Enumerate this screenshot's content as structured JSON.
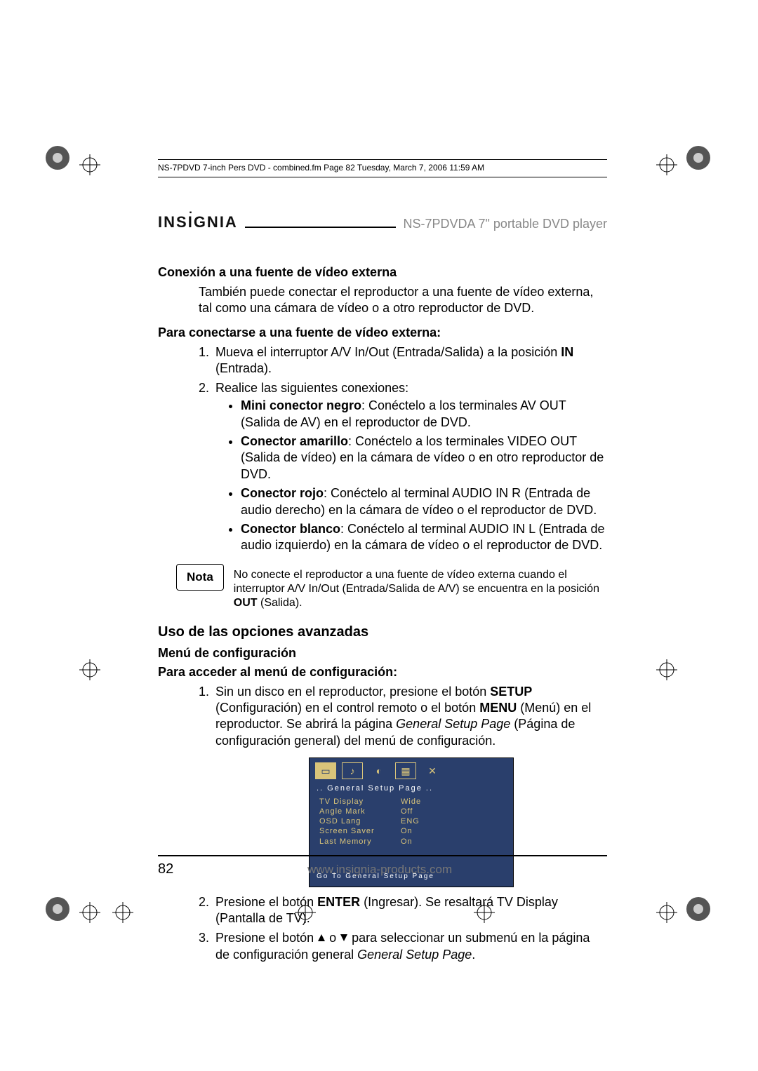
{
  "docinfo": "NS-7PDVD 7-inch Pers DVD - combined.fm  Page 82  Tuesday, March 7, 2006  11:59 AM",
  "brand": "INSIGNIA",
  "product": "NS-7PDVDA 7\" portable DVD player",
  "section1": {
    "title": "Conexión a una fuente de vídeo externa",
    "para": "También puede conectar el reproductor a una fuente de vídeo externa, tal como una cámara de vídeo o a otro reproductor de DVD.",
    "sub": "Para conectarse a una fuente de vídeo externa:",
    "step1_a": "Mueva el interruptor A/V In/Out (Entrada/Salida) a la posición ",
    "step1_b": "IN",
    "step1_c": " (Entrada).",
    "step2": "Realice las siguientes conexiones:",
    "b1_a": "Mini conector negro",
    "b1_b": ": Conéctelo a los terminales AV OUT (Salida de AV) en el reproductor de DVD.",
    "b2_a": "Conector amarillo",
    "b2_b": ": Conéctelo a los terminales VIDEO OUT (Salida de vídeo) en la cámara de vídeo o en otro reproductor de DVD.",
    "b3_a": "Conector rojo",
    "b3_b": ": Conéctelo al terminal AUDIO IN R (Entrada de audio derecho) en la cámara de vídeo o el reproductor de DVD.",
    "b4_a": "Conector blanco",
    "b4_b": ": Conéctelo al terminal AUDIO IN L (Entrada de audio izquierdo) en la cámara de vídeo o el reproductor de DVD."
  },
  "note": {
    "label": "Nota",
    "text_a": "No conecte el reproductor a una fuente de vídeo externa cuando el interruptor A/V In/Out (Entrada/Salida de A/V) se encuentra en la posición ",
    "text_b": "OUT",
    "text_c": " (Salida)."
  },
  "section2": {
    "major": "Uso de las opciones avanzadas",
    "menu": "Menú de configuración",
    "access": "Para acceder al menú de configuración:",
    "s1_a": "Sin un disco en el reproductor, presione el botón ",
    "s1_b": "SETUP",
    "s1_c": " (Configuración) en el control remoto o el botón ",
    "s1_d": "MENU",
    "s1_e": " (Menú) en el reproductor. Se abrirá la página ",
    "s1_f": "General Setup Page",
    "s1_g": " (Página de configuración general) del menú de configuración.",
    "s2_a": "Presione el botón ",
    "s2_b": "ENTER",
    "s2_c": " (Ingresar). Se resaltará TV Display (Pantalla de TV).",
    "s3_a": "Presione el botón ",
    "s3_b": " o ",
    "s3_c": " para seleccionar un submenú en la página de configuración general ",
    "s3_d": "General Setup Page",
    "s3_e": "."
  },
  "osd": {
    "title": "..   General   Setup   Page   ..",
    "rows": [
      {
        "k": "TV   Display",
        "v": "Wide"
      },
      {
        "k": "Angle   Mark",
        "v": "Off"
      },
      {
        "k": "OSD   Lang",
        "v": "ENG"
      },
      {
        "k": "Screen   Saver",
        "v": "On"
      },
      {
        "k": "Last   Memory",
        "v": "On"
      }
    ],
    "footer": "Go   To   General   Setup   Page"
  },
  "pageno": "82",
  "url": "www.insignia-products.com"
}
